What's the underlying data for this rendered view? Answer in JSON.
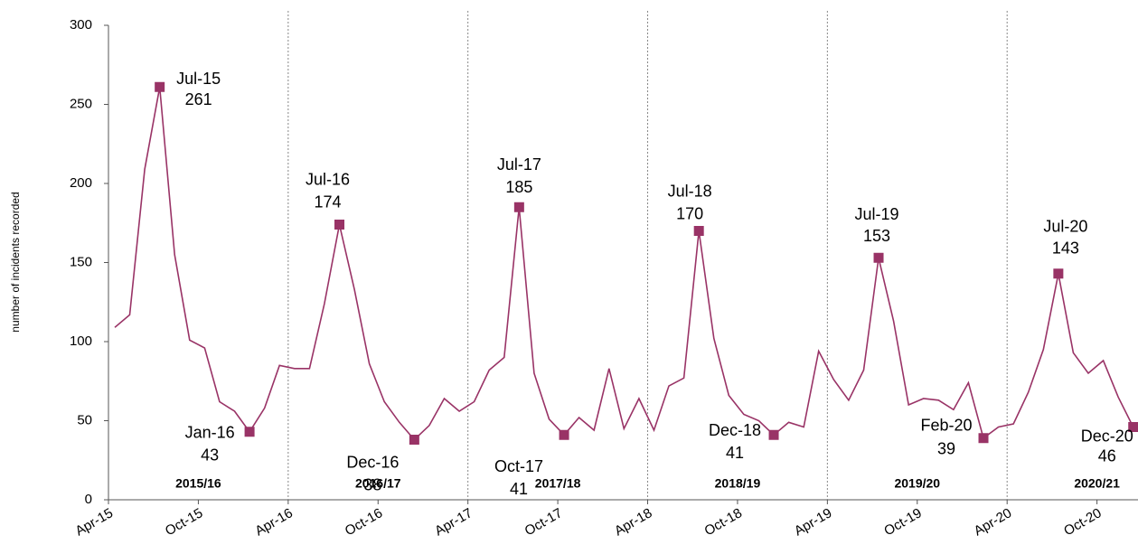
{
  "chart_data": {
    "type": "line",
    "y_label": "number of incidents recorded",
    "categories": [
      "Apr-15",
      null,
      null,
      null,
      null,
      null,
      "Oct-15",
      null,
      null,
      null,
      null,
      null,
      "Apr-16",
      null,
      null,
      null,
      null,
      null,
      "Oct-16",
      null,
      null,
      null,
      null,
      null,
      "Apr-17",
      null,
      null,
      null,
      null,
      null,
      "Oct-17",
      null,
      null,
      null,
      null,
      null,
      "Apr-18",
      null,
      null,
      null,
      null,
      null,
      "Oct-18",
      null,
      null,
      null,
      null,
      null,
      "Apr-19",
      null,
      null,
      null,
      null,
      null,
      "Oct-19",
      null,
      null,
      null,
      null,
      null,
      "Apr-20",
      null,
      null,
      null,
      null,
      null,
      "Oct-20",
      null,
      null
    ],
    "values": [
      109,
      117,
      209,
      261,
      155,
      101,
      96,
      62,
      56,
      43,
      58,
      85,
      83,
      83,
      124,
      174,
      133,
      86,
      62,
      49,
      38,
      47,
      64,
      56,
      62,
      82,
      90,
      185,
      80,
      51,
      41,
      52,
      44,
      83,
      45,
      64,
      44,
      72,
      77,
      170,
      102,
      66,
      54,
      50,
      41,
      49,
      46,
      94,
      76,
      63,
      82,
      153,
      113,
      60,
      64,
      63,
      57,
      74,
      39,
      46,
      48,
      68,
      95,
      143,
      93,
      80,
      88,
      65,
      46
    ],
    "point_labels": [
      null,
      null,
      null,
      "Jul-15",
      null,
      null,
      null,
      null,
      null,
      "Jan-16",
      null,
      null,
      null,
      null,
      null,
      "Jul-16",
      null,
      null,
      null,
      null,
      "Dec-16",
      null,
      null,
      null,
      null,
      null,
      null,
      "Jul-17",
      null,
      null,
      "Oct-17",
      null,
      null,
      null,
      null,
      null,
      null,
      null,
      null,
      "Jul-18",
      null,
      null,
      null,
      null,
      "Dec-18",
      null,
      null,
      null,
      null,
      null,
      null,
      "Jul-19",
      null,
      null,
      null,
      null,
      null,
      null,
      "Feb-20",
      null,
      null,
      null,
      null,
      "Jul-20",
      null,
      null,
      null,
      null,
      "Dec-20"
    ],
    "periods": [
      "2015/16",
      "2016/17",
      "2017/18",
      "2018/19",
      "2019/20",
      "2020/21"
    ],
    "color": "#993366",
    "ylim": [
      0,
      300
    ],
    "yticks": [
      0,
      50,
      100,
      150,
      200,
      250,
      300
    ]
  }
}
